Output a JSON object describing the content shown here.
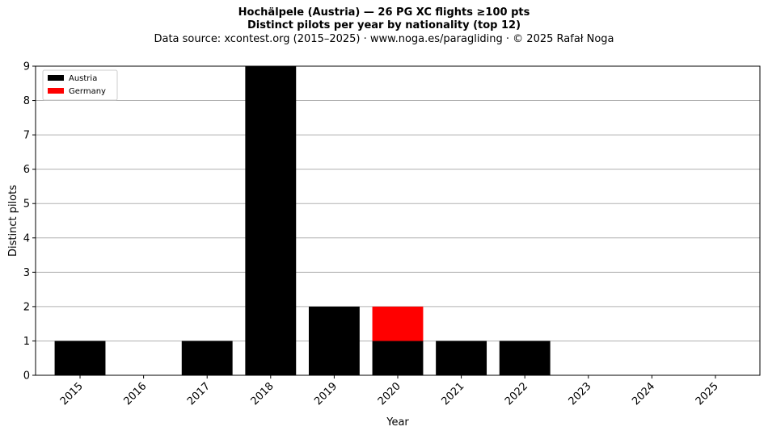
{
  "header": {
    "title_line1": "Hochälpele (Austria)  —  26 PG XC flights ≥100 pts",
    "title_line2": "Distinct pilots per year by nationality (top 12)",
    "title_line3": "Data source: xcontest.org (2015–2025)  ·  www.noga.es/paragliding  ·  © 2025 Rafał Noga"
  },
  "chart_data": {
    "type": "bar",
    "stacked": true,
    "categories": [
      "2015",
      "2016",
      "2017",
      "2018",
      "2019",
      "2020",
      "2021",
      "2022",
      "2023",
      "2024",
      "2025"
    ],
    "series": [
      {
        "name": "Austria",
        "color": "#000000",
        "values": [
          1,
          0,
          1,
          9,
          2,
          1,
          1,
          1,
          0,
          0,
          0
        ]
      },
      {
        "name": "Germany",
        "color": "#ff0000",
        "values": [
          0,
          0,
          0,
          0,
          0,
          1,
          0,
          0,
          0,
          0,
          0
        ]
      }
    ],
    "xlabel": "Year",
    "ylabel": "Distinct pilots",
    "ylim": [
      0,
      9
    ],
    "yticks": [
      0,
      1,
      2,
      3,
      4,
      5,
      6,
      7,
      8,
      9
    ],
    "grid": "horizontal",
    "legend_position": "top-left"
  }
}
